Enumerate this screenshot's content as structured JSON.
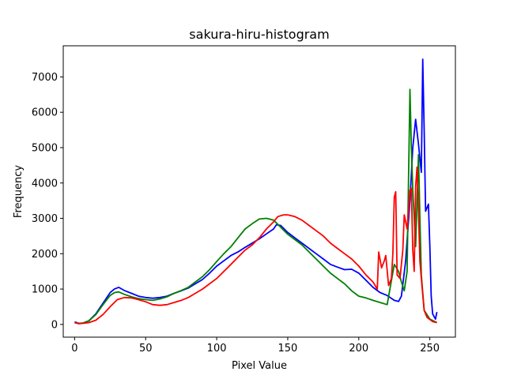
{
  "chart_data": {
    "type": "line",
    "title": "sakura-hiru-histogram",
    "xlabel": "Pixel Value",
    "ylabel": "Frequency",
    "xlim": [
      -8,
      268
    ],
    "ylim": [
      -360,
      7880
    ],
    "x_ticks": [
      0,
      50,
      100,
      150,
      200,
      250
    ],
    "y_ticks": [
      0,
      1000,
      2000,
      3000,
      4000,
      5000,
      6000,
      7000
    ],
    "grid": false,
    "legend": "none",
    "series": [
      {
        "color": "#0000ff",
        "points": [
          [
            0,
            70
          ],
          [
            3,
            30
          ],
          [
            6,
            40
          ],
          [
            10,
            100
          ],
          [
            15,
            300
          ],
          [
            20,
            600
          ],
          [
            25,
            900
          ],
          [
            28,
            1000
          ],
          [
            31,
            1050
          ],
          [
            35,
            960
          ],
          [
            40,
            880
          ],
          [
            45,
            800
          ],
          [
            50,
            760
          ],
          [
            55,
            740
          ],
          [
            60,
            760
          ],
          [
            65,
            800
          ],
          [
            70,
            880
          ],
          [
            75,
            950
          ],
          [
            80,
            1030
          ],
          [
            85,
            1150
          ],
          [
            90,
            1270
          ],
          [
            95,
            1450
          ],
          [
            100,
            1650
          ],
          [
            105,
            1800
          ],
          [
            110,
            1950
          ],
          [
            115,
            2050
          ],
          [
            120,
            2180
          ],
          [
            125,
            2300
          ],
          [
            130,
            2420
          ],
          [
            135,
            2560
          ],
          [
            140,
            2700
          ],
          [
            142,
            2820
          ],
          [
            145,
            2800
          ],
          [
            150,
            2600
          ],
          [
            155,
            2450
          ],
          [
            160,
            2300
          ],
          [
            165,
            2150
          ],
          [
            170,
            2000
          ],
          [
            175,
            1850
          ],
          [
            180,
            1700
          ],
          [
            185,
            1620
          ],
          [
            190,
            1550
          ],
          [
            195,
            1560
          ],
          [
            200,
            1450
          ],
          [
            205,
            1250
          ],
          [
            210,
            1050
          ],
          [
            215,
            900
          ],
          [
            220,
            820
          ],
          [
            225,
            680
          ],
          [
            228,
            650
          ],
          [
            230,
            800
          ],
          [
            233,
            1800
          ],
          [
            236,
            3500
          ],
          [
            238,
            5000
          ],
          [
            240,
            5800
          ],
          [
            242,
            5100
          ],
          [
            244,
            4300
          ],
          [
            245,
            7500
          ],
          [
            246,
            5500
          ],
          [
            247,
            3200
          ],
          [
            248,
            3300
          ],
          [
            249,
            3400
          ],
          [
            250,
            2200
          ],
          [
            251,
            800
          ],
          [
            252,
            300
          ],
          [
            254,
            150
          ],
          [
            255,
            350
          ]
        ]
      },
      {
        "color": "#008000",
        "points": [
          [
            0,
            50
          ],
          [
            3,
            30
          ],
          [
            6,
            40
          ],
          [
            10,
            100
          ],
          [
            15,
            280
          ],
          [
            20,
            560
          ],
          [
            25,
            820
          ],
          [
            28,
            900
          ],
          [
            31,
            920
          ],
          [
            35,
            850
          ],
          [
            40,
            780
          ],
          [
            45,
            730
          ],
          [
            50,
            700
          ],
          [
            55,
            680
          ],
          [
            60,
            720
          ],
          [
            65,
            780
          ],
          [
            70,
            880
          ],
          [
            75,
            960
          ],
          [
            80,
            1050
          ],
          [
            85,
            1200
          ],
          [
            90,
            1350
          ],
          [
            95,
            1550
          ],
          [
            100,
            1780
          ],
          [
            105,
            2000
          ],
          [
            110,
            2200
          ],
          [
            115,
            2450
          ],
          [
            120,
            2700
          ],
          [
            125,
            2850
          ],
          [
            130,
            2980
          ],
          [
            135,
            3000
          ],
          [
            140,
            2950
          ],
          [
            145,
            2750
          ],
          [
            150,
            2550
          ],
          [
            155,
            2400
          ],
          [
            160,
            2250
          ],
          [
            165,
            2050
          ],
          [
            170,
            1850
          ],
          [
            175,
            1650
          ],
          [
            180,
            1450
          ],
          [
            185,
            1300
          ],
          [
            190,
            1150
          ],
          [
            195,
            950
          ],
          [
            200,
            800
          ],
          [
            205,
            750
          ],
          [
            210,
            680
          ],
          [
            215,
            620
          ],
          [
            220,
            560
          ],
          [
            225,
            1700
          ],
          [
            228,
            1500
          ],
          [
            230,
            1200
          ],
          [
            232,
            950
          ],
          [
            234,
            1500
          ],
          [
            236,
            6650
          ],
          [
            237,
            5000
          ],
          [
            238,
            3800
          ],
          [
            240,
            2200
          ],
          [
            242,
            4800
          ],
          [
            243,
            3000
          ],
          [
            244,
            1400
          ],
          [
            246,
            400
          ],
          [
            250,
            150
          ],
          [
            255,
            50
          ]
        ]
      },
      {
        "color": "#ff0000",
        "points": [
          [
            0,
            50
          ],
          [
            3,
            20
          ],
          [
            6,
            30
          ],
          [
            10,
            50
          ],
          [
            15,
            120
          ],
          [
            20,
            280
          ],
          [
            25,
            500
          ],
          [
            30,
            700
          ],
          [
            35,
            760
          ],
          [
            40,
            750
          ],
          [
            45,
            700
          ],
          [
            50,
            640
          ],
          [
            55,
            560
          ],
          [
            60,
            540
          ],
          [
            65,
            560
          ],
          [
            70,
            620
          ],
          [
            75,
            680
          ],
          [
            80,
            760
          ],
          [
            85,
            880
          ],
          [
            90,
            1000
          ],
          [
            95,
            1150
          ],
          [
            100,
            1300
          ],
          [
            105,
            1500
          ],
          [
            110,
            1700
          ],
          [
            115,
            1900
          ],
          [
            120,
            2100
          ],
          [
            125,
            2250
          ],
          [
            130,
            2450
          ],
          [
            135,
            2700
          ],
          [
            140,
            2900
          ],
          [
            143,
            3050
          ],
          [
            147,
            3100
          ],
          [
            150,
            3100
          ],
          [
            155,
            3050
          ],
          [
            160,
            2950
          ],
          [
            165,
            2800
          ],
          [
            170,
            2650
          ],
          [
            175,
            2500
          ],
          [
            180,
            2300
          ],
          [
            185,
            2150
          ],
          [
            190,
            2000
          ],
          [
            195,
            1850
          ],
          [
            200,
            1650
          ],
          [
            205,
            1400
          ],
          [
            210,
            1200
          ],
          [
            213,
            1000
          ],
          [
            214,
            2050
          ],
          [
            216,
            1600
          ],
          [
            218,
            1800
          ],
          [
            219,
            1950
          ],
          [
            221,
            1100
          ],
          [
            223,
            1300
          ],
          [
            224,
            2000
          ],
          [
            225,
            3600
          ],
          [
            226,
            3750
          ],
          [
            227,
            1400
          ],
          [
            229,
            1300
          ],
          [
            231,
            2100
          ],
          [
            232,
            3100
          ],
          [
            234,
            2700
          ],
          [
            236,
            3800
          ],
          [
            237,
            3850
          ],
          [
            238,
            2100
          ],
          [
            239,
            1500
          ],
          [
            240,
            3900
          ],
          [
            241,
            4450
          ],
          [
            242,
            3200
          ],
          [
            243,
            1800
          ],
          [
            244,
            1300
          ],
          [
            246,
            400
          ],
          [
            248,
            200
          ],
          [
            252,
            80
          ],
          [
            255,
            50
          ]
        ]
      }
    ]
  }
}
